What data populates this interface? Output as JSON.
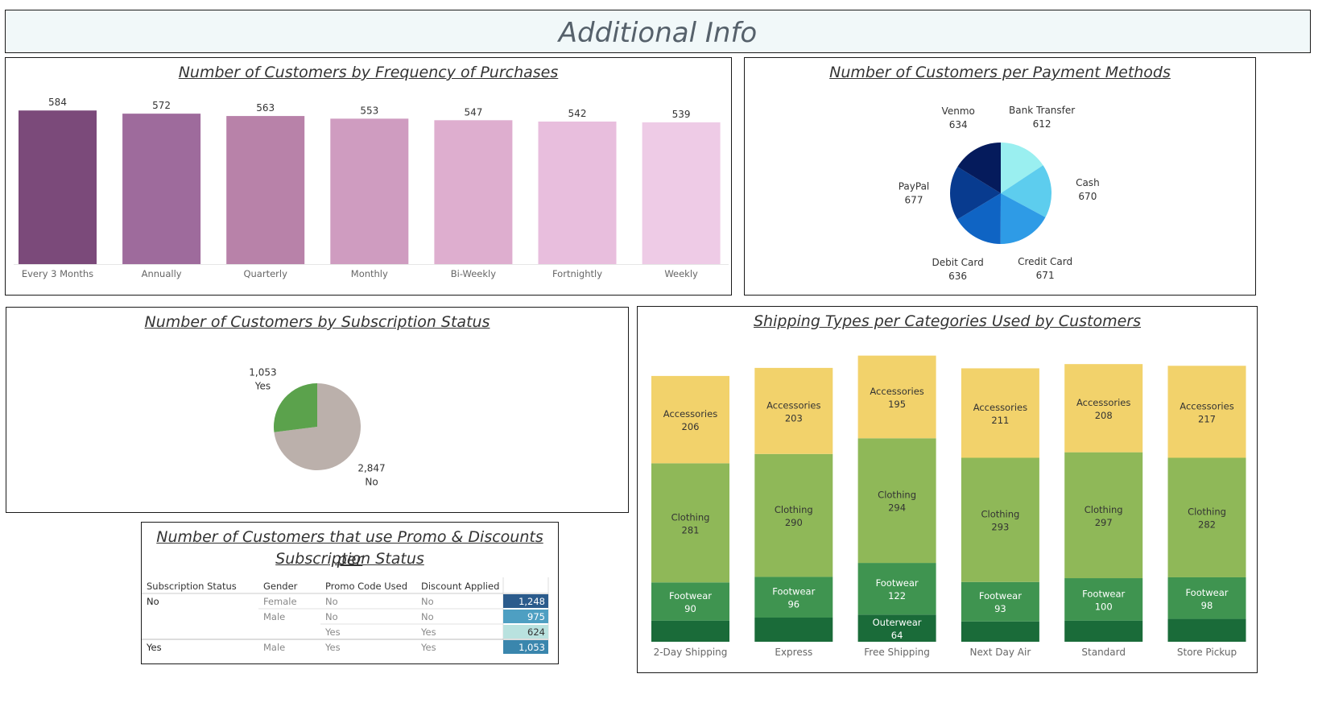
{
  "header": {
    "title": "Additional Info"
  },
  "frequency_panel": {
    "title": "Number of Customers by Frequency of Purchases"
  },
  "payment_panel": {
    "title": "Number of Customers per Payment Methods"
  },
  "subscription_panel": {
    "title": "Number of Customers by Subscription Status"
  },
  "shipping_panel": {
    "title": "Shipping Types per Categories  Used by Customers"
  },
  "promo_panel": {
    "title_line1": "Number of Customers that use Promo & Discounts per",
    "title_line2": "Subscription Status"
  },
  "chart_data": [
    {
      "id": "frequency",
      "type": "bar",
      "categories": [
        "Every 3 Months",
        "Annually",
        "Quarterly",
        "Monthly",
        "Bi-Weekly",
        "Fortnightly",
        "Weekly"
      ],
      "values": [
        584,
        572,
        563,
        553,
        547,
        542,
        539
      ],
      "colors": [
        "#7b4a7a",
        "#9e6b9c",
        "#b882a9",
        "#cf9cc0",
        "#deaecf",
        "#e8bedd",
        "#eecbe6"
      ],
      "ylim": [
        0,
        600
      ]
    },
    {
      "id": "payment",
      "type": "pie",
      "slices": [
        {
          "label": "Bank Transfer",
          "value": 612,
          "color": "#9aeff0"
        },
        {
          "label": "Cash",
          "value": 670,
          "color": "#5dcdee"
        },
        {
          "label": "Credit Card",
          "value": 671,
          "color": "#2e9be6"
        },
        {
          "label": "Debit Card",
          "value": 636,
          "color": "#0f64c4"
        },
        {
          "label": "PayPal",
          "value": 677,
          "color": "#083b8f"
        },
        {
          "label": "Venmo",
          "value": 634,
          "color": "#051b5c"
        }
      ]
    },
    {
      "id": "subscription",
      "type": "pie",
      "slices": [
        {
          "label": "No",
          "value": 2847,
          "display": "2,847",
          "color": "#bbb0ab"
        },
        {
          "label": "Yes",
          "value": 1053,
          "display": "1,053",
          "color": "#5ba24c"
        }
      ]
    },
    {
      "id": "shipping",
      "type": "bar",
      "stacked": true,
      "categories": [
        "2-Day Shipping",
        "Express",
        "Free Shipping",
        "Next Day Air",
        "Standard",
        "Store Pickup"
      ],
      "series": [
        {
          "name": "Outerwear",
          "values": [
            50,
            57,
            64,
            48,
            50,
            54
          ],
          "color": "#1a6b39",
          "show_labels": [
            false,
            false,
            true,
            false,
            false,
            false
          ]
        },
        {
          "name": "Footwear",
          "values": [
            90,
            96,
            122,
            93,
            100,
            98
          ],
          "color": "#3f9450",
          "show_labels": [
            true,
            true,
            true,
            true,
            true,
            true
          ]
        },
        {
          "name": "Clothing",
          "values": [
            281,
            290,
            294,
            293,
            297,
            282
          ],
          "color": "#8fb858",
          "show_labels": [
            true,
            true,
            true,
            true,
            true,
            true
          ]
        },
        {
          "name": "Accessories",
          "values": [
            206,
            203,
            195,
            211,
            208,
            217
          ],
          "color": "#f2d26b",
          "show_labels": [
            true,
            true,
            true,
            true,
            true,
            true
          ]
        }
      ],
      "ylim": [
        0,
        680
      ]
    },
    {
      "id": "promo",
      "type": "table",
      "columns": [
        "Subscription Status",
        "Gender",
        "Promo Code Used",
        "Discount Applied"
      ],
      "rows": [
        {
          "status": "No",
          "gender": "Female",
          "promo": "No",
          "discount": "No",
          "value": 1248,
          "display": "1,248",
          "color": "#2b5b8c"
        },
        {
          "status": "",
          "gender": "Male",
          "promo": "No",
          "discount": "No",
          "value": 975,
          "display": "975",
          "color": "#4e9fc2"
        },
        {
          "status": "",
          "gender": "",
          "promo": "Yes",
          "discount": "Yes",
          "value": 624,
          "display": "624",
          "color": "#b9e2df"
        },
        {
          "status": "Yes",
          "gender": "Male",
          "promo": "Yes",
          "discount": "Yes",
          "value": 1053,
          "display": "1,053",
          "color": "#3a86ad"
        }
      ]
    }
  ]
}
